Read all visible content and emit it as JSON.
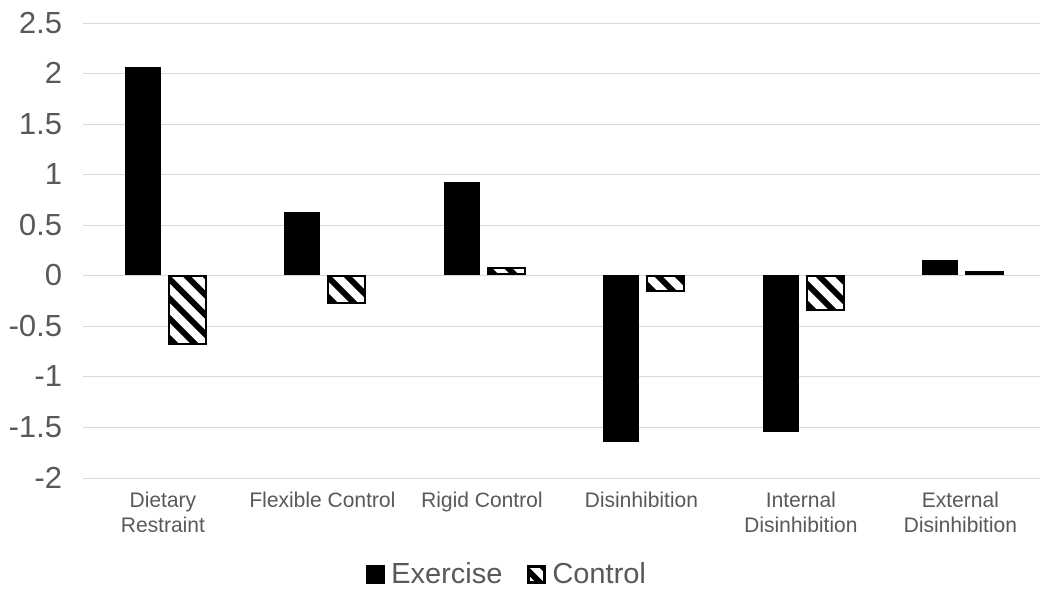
{
  "chart_data": {
    "type": "bar",
    "categories": [
      "Dietary Restraint",
      "Flexible Control",
      "Rigid Control",
      "Disinhibition",
      "Internal Disinhibition",
      "External Disinhibition"
    ],
    "category_lines": [
      [
        "Dietary",
        "Restraint"
      ],
      [
        "Flexible Control"
      ],
      [
        "Rigid Control"
      ],
      [
        "Disinhibition"
      ],
      [
        "Internal",
        "Disinhibition"
      ],
      [
        "External",
        "Disinhibition"
      ]
    ],
    "series": [
      {
        "name": "Exercise",
        "style": "solid",
        "values": [
          2.06,
          0.63,
          0.92,
          -1.65,
          -1.55,
          0.15
        ]
      },
      {
        "name": "Control",
        "style": "hatched",
        "values": [
          -0.69,
          -0.28,
          0.08,
          -0.17,
          -0.35,
          0.03
        ]
      }
    ],
    "ylim": [
      -2,
      2.5
    ],
    "ytick_step": 0.5,
    "ytick_labels": [
      "2.5",
      "2",
      "1.5",
      "1",
      "0.5",
      "0",
      "-0.5",
      "-1",
      "-1.5",
      "-2"
    ],
    "yticks": [
      2.5,
      2,
      1.5,
      1,
      0.5,
      0,
      -0.5,
      -1,
      -1.5,
      -2
    ],
    "grid": true,
    "legend_position": "bottom",
    "colors": {
      "bar_fill": "#000000",
      "hatch_background": "#ffffff",
      "gridline": "#d9d9d9",
      "axis_label": "#595959",
      "legend_text": "#595959",
      "background": "#ffffff"
    }
  }
}
